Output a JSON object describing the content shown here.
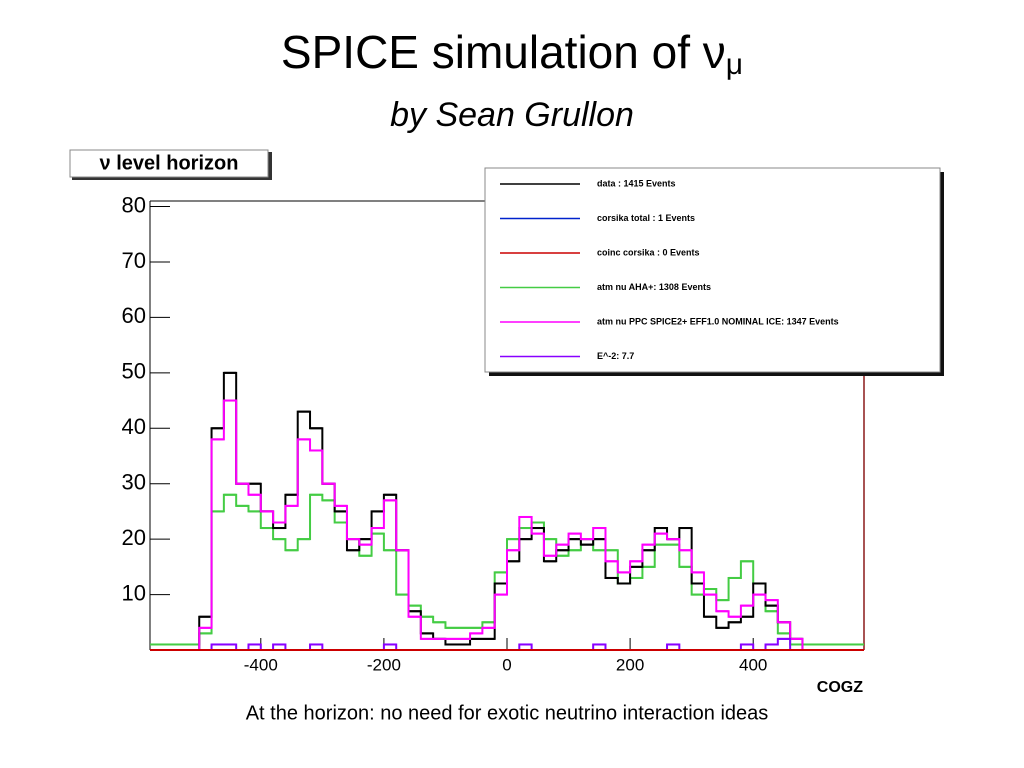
{
  "chart_data": {
    "type": "histogram",
    "title": "SPICE simulation of ν",
    "title_subscript": "μ",
    "subtitle": "by Sean Grullon",
    "box_label": "ν level horizon",
    "x_label": "COGZ",
    "caption": "At the horizon: no need for exotic neutrino interaction ideas",
    "xlim": [
      -580,
      580
    ],
    "ylim": [
      0,
      81
    ],
    "xticks": [
      -400,
      -200,
      0,
      200,
      400
    ],
    "yticks": [
      10,
      20,
      30,
      40,
      50,
      60,
      70,
      80
    ],
    "bins": [
      -580,
      -560,
      -540,
      -520,
      -500,
      -480,
      -460,
      -440,
      -420,
      -400,
      -380,
      -360,
      -340,
      -320,
      -300,
      -280,
      -260,
      -240,
      -220,
      -200,
      -180,
      -160,
      -140,
      -120,
      -100,
      -80,
      -60,
      -40,
      -20,
      0,
      20,
      40,
      60,
      80,
      100,
      120,
      140,
      160,
      180,
      200,
      220,
      240,
      260,
      280,
      300,
      320,
      340,
      360,
      380,
      400,
      420,
      440,
      460,
      480,
      500,
      520,
      540,
      560,
      580
    ],
    "series": [
      {
        "name": "data : 1415 Events",
        "color": "#000000",
        "values": [
          0,
          0,
          0,
          0,
          6,
          40,
          50,
          30,
          30,
          25,
          22,
          28,
          43,
          40,
          30,
          25,
          18,
          20,
          25,
          28,
          18,
          7,
          3,
          2,
          1,
          1,
          2,
          2,
          12,
          16,
          20,
          22,
          16,
          18,
          20,
          19,
          20,
          13,
          12,
          15,
          18,
          22,
          20,
          22,
          12,
          6,
          4,
          5,
          6,
          12,
          8,
          5,
          2,
          0,
          0,
          0,
          0,
          0
        ]
      },
      {
        "name": "corsika total : 1 Events",
        "color": "#0022cc",
        "values": [
          0,
          0,
          0,
          0,
          0,
          0,
          0,
          0,
          0,
          0,
          0,
          0,
          0,
          0,
          0,
          0,
          0,
          0,
          0,
          0,
          0,
          0,
          0,
          0,
          0,
          0,
          0,
          0,
          0,
          0,
          0,
          0,
          0,
          0,
          0,
          0,
          0,
          0,
          0,
          0,
          0,
          0,
          0,
          0,
          0,
          0,
          0,
          0,
          0,
          0,
          0,
          0,
          0,
          0,
          0,
          0,
          0,
          0
        ]
      },
      {
        "name": "coinc corsika : 0 Events",
        "color": "#cc0000",
        "values": [
          0,
          0,
          0,
          0,
          0,
          0,
          0,
          0,
          0,
          0,
          0,
          0,
          0,
          0,
          0,
          0,
          0,
          0,
          0,
          0,
          0,
          0,
          0,
          0,
          0,
          0,
          0,
          0,
          0,
          0,
          0,
          0,
          0,
          0,
          0,
          0,
          0,
          0,
          0,
          0,
          0,
          0,
          0,
          0,
          0,
          0,
          0,
          0,
          0,
          0,
          0,
          0,
          0,
          0,
          0,
          0,
          0,
          0
        ]
      },
      {
        "name": "atm nu AHA+: 1308 Events",
        "color": "#44cc44",
        "values": [
          1,
          1,
          1,
          1,
          3,
          25,
          28,
          26,
          25,
          22,
          20,
          18,
          20,
          28,
          27,
          23,
          20,
          17,
          21,
          18,
          10,
          8,
          6,
          5,
          4,
          4,
          4,
          5,
          14,
          20,
          22,
          23,
          20,
          17,
          18,
          20,
          18,
          18,
          12,
          13,
          15,
          19,
          19,
          15,
          10,
          11,
          9,
          13,
          16,
          12,
          7,
          3,
          1,
          1,
          1,
          1,
          1,
          1
        ]
      },
      {
        "name": "atm nu PPC SPICE2+ EFF1.0 NOMINAL ICE: 1347 Events",
        "color": "#ff00ff",
        "values": [
          0,
          0,
          0,
          0,
          4,
          38,
          45,
          30,
          28,
          25,
          23,
          26,
          38,
          36,
          30,
          26,
          20,
          19,
          22,
          27,
          18,
          6,
          2,
          2,
          2,
          2,
          3,
          4,
          10,
          18,
          24,
          21,
          17,
          19,
          21,
          20,
          22,
          16,
          14,
          16,
          19,
          21,
          20,
          18,
          14,
          10,
          7,
          6,
          8,
          10,
          9,
          5,
          2,
          0,
          0,
          0,
          0,
          0
        ]
      },
      {
        "name": "E^-2: 7.7",
        "color": "#8800ff",
        "values": [
          0,
          0,
          0,
          0,
          0,
          1,
          1,
          0,
          1,
          0,
          1,
          0,
          0,
          1,
          0,
          0,
          0,
          0,
          0,
          1,
          0,
          0,
          0,
          0,
          0,
          0,
          0,
          0,
          0,
          0,
          1,
          0,
          0,
          0,
          0,
          0,
          1,
          0,
          0,
          0,
          0,
          0,
          1,
          0,
          0,
          0,
          0,
          0,
          1,
          0,
          1,
          2,
          0,
          0,
          0,
          0,
          0,
          0
        ]
      }
    ],
    "draw_order": [
      3,
      0,
      4,
      5,
      1,
      2
    ]
  }
}
